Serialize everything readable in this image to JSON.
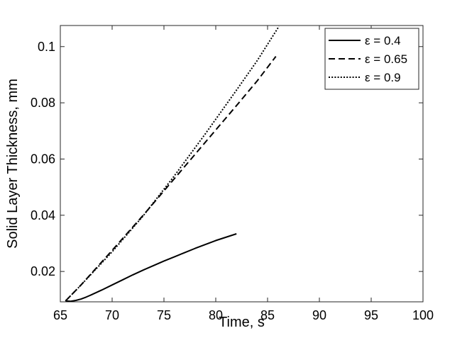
{
  "chart_data": {
    "type": "line",
    "title": "",
    "xlabel": "Time, s",
    "ylabel": "Solid Layer Thickness, mm",
    "xlim": [
      65,
      100
    ],
    "ylim": [
      0.0092,
      0.1075
    ],
    "xticks": [
      65,
      70,
      75,
      80,
      85,
      90,
      95,
      100
    ],
    "xtick_labels": [
      "65",
      "70",
      "75",
      "80",
      "85",
      "90",
      "95",
      "100"
    ],
    "yticks": [
      0.02,
      0.04,
      0.06,
      0.08,
      0.1
    ],
    "ytick_labels": [
      "0.02",
      "0.04",
      "0.06",
      "0.08",
      "0.1"
    ],
    "grid": false,
    "legend_position": "top-right",
    "series": [
      {
        "name": "ε = 0.4",
        "line_style": "solid",
        "color": "#000000",
        "x": [
          65.5,
          66.0,
          66.5,
          67.0,
          67.5,
          68.0,
          69.0,
          70.0,
          71.0,
          72.0,
          73.0,
          74.0,
          75.0,
          76.0,
          77.0,
          78.0,
          79.0,
          80.0,
          81.0,
          82.0
        ],
        "y": [
          0.0095,
          0.0094,
          0.0097,
          0.0102,
          0.0109,
          0.0117,
          0.0134,
          0.0152,
          0.017,
          0.0188,
          0.0205,
          0.0221,
          0.0237,
          0.0252,
          0.0267,
          0.0282,
          0.0296,
          0.031,
          0.0322,
          0.0334
        ]
      },
      {
        "name": "ε = 0.65",
        "line_style": "dashed",
        "color": "#000000",
        "x": [
          65.5,
          67.0,
          70.0,
          73.0,
          76.0,
          79.0,
          82.0,
          84.0,
          85.8
        ],
        "y": [
          0.0095,
          0.0152,
          0.0275,
          0.04,
          0.053,
          0.066,
          0.079,
          0.0878,
          0.0965
        ]
      },
      {
        "name": "ε = 0.9",
        "line_style": "dotted",
        "color": "#000000",
        "x": [
          65.5,
          67.0,
          70.0,
          73.0,
          76.0,
          79.0,
          82.0,
          84.0,
          86.1
        ],
        "y": [
          0.0095,
          0.0152,
          0.027,
          0.0398,
          0.054,
          0.069,
          0.0845,
          0.095,
          0.1072
        ]
      }
    ]
  }
}
